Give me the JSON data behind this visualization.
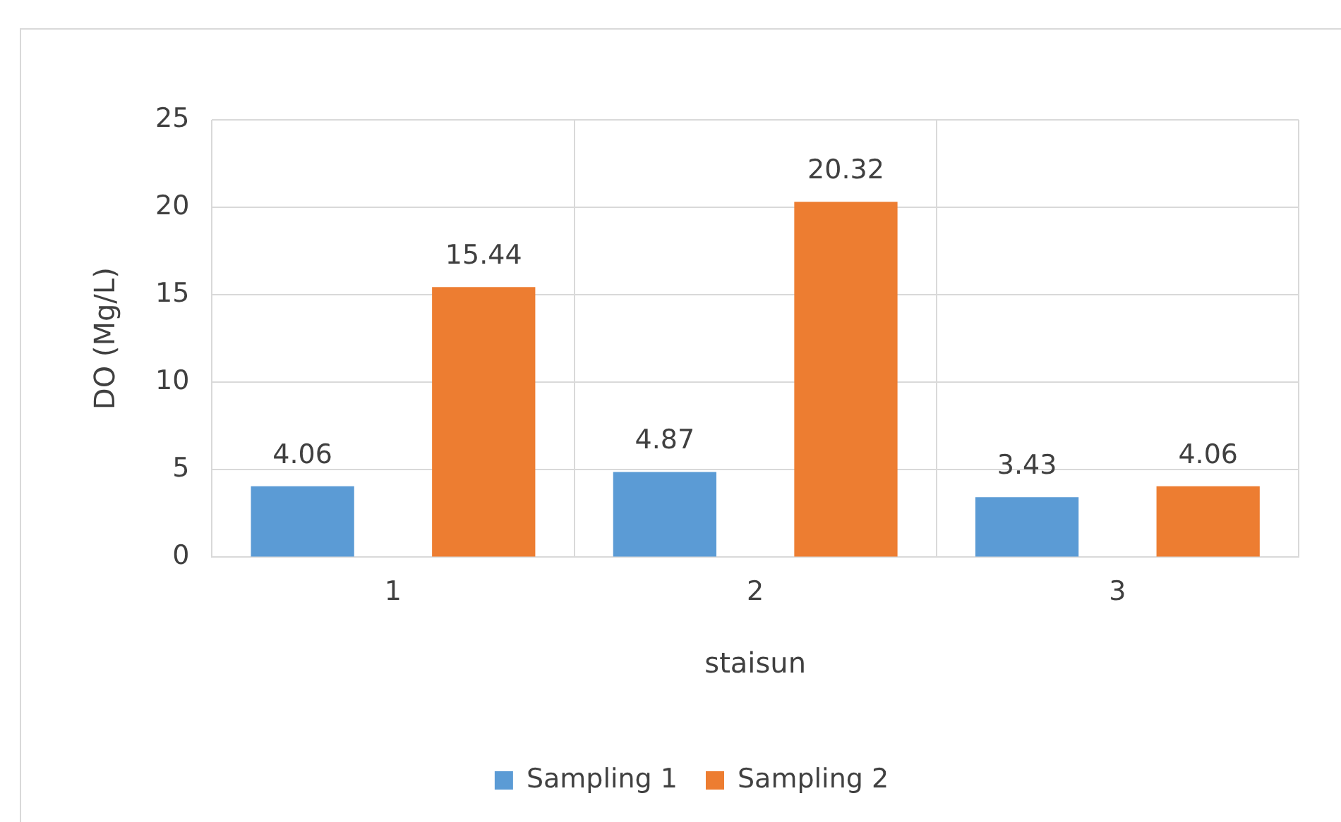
{
  "chart_data": {
    "type": "bar",
    "xlabel": "staisun",
    "ylabel": "DO (Mg/L)",
    "categories": [
      "1",
      "2",
      "3"
    ],
    "series": [
      {
        "name": "Sampling 1",
        "color": "#5b9bd5",
        "values": [
          4.06,
          4.87,
          3.43
        ]
      },
      {
        "name": "Sampling 2",
        "color": "#ed7d31",
        "values": [
          15.44,
          20.32,
          4.06
        ]
      }
    ],
    "ylim": [
      0,
      25
    ],
    "yticks": [
      0,
      5,
      10,
      15,
      20,
      25
    ],
    "grid": true,
    "legend": "bottom",
    "data_labels": true
  }
}
